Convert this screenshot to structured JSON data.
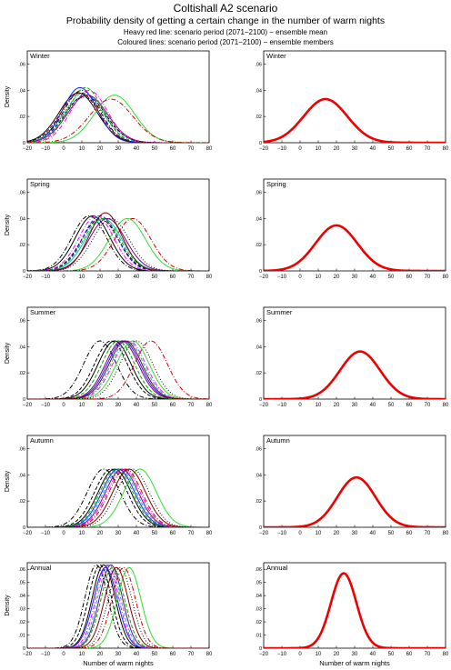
{
  "title": "Coltishall A2 scenario",
  "subtitle": "Probability density of getting a certain change in the number of warm nights",
  "legend_line_1": "Heavy red line: scenario period (2071−2100) − ensemble mean",
  "legend_line_2": "Coloured lines: scenario period (2071−2100) − ensemble members",
  "ylabel": "Density",
  "xlabel": "Number of warm nights",
  "chart_data": {
    "type": "line",
    "xlim": [
      -20,
      80
    ],
    "x_ticks": [
      -20,
      -10,
      0,
      10,
      20,
      30,
      40,
      50,
      60,
      70,
      80
    ],
    "y_ticks_by_panel": {
      "Winter": [
        0,
        0.02,
        0.04,
        0.06
      ],
      "Spring": [
        0,
        0.02,
        0.04,
        0.06
      ],
      "Summer": [
        0,
        0.02,
        0.04,
        0.06
      ],
      "Autumn": [
        0,
        0.02,
        0.04,
        0.06
      ],
      "Annual": [
        0,
        0.01,
        0.02,
        0.03,
        0.04,
        0.05,
        0.06
      ]
    },
    "panels": [
      {
        "label": "Winter",
        "ylim": [
          0,
          0.07
        ],
        "mean": {
          "mu": 14,
          "sd": 12
        },
        "members": [
          [
            10,
            10,
            "#000000",
            "dashdot"
          ],
          [
            12,
            11,
            "#000000",
            "dashed"
          ],
          [
            8,
            10.5,
            "#000000",
            "solid"
          ],
          [
            9,
            9.5,
            "#1a1aff",
            "solid"
          ],
          [
            11,
            10.5,
            "#00c0c0",
            "dashed"
          ],
          [
            13,
            11,
            "#800080",
            "solid"
          ],
          [
            14,
            10,
            "#ff00ff",
            "dashdot"
          ],
          [
            12,
            9.5,
            "#00aa00",
            "dashed"
          ],
          [
            28,
            11,
            "#33dd33",
            "solid"
          ],
          [
            26,
            12,
            "#cc0000",
            "dashdot"
          ],
          [
            9,
            10.5,
            "#800000",
            "dashed"
          ],
          [
            11,
            11.5,
            "#000000",
            "dotted"
          ]
        ]
      },
      {
        "label": "Spring",
        "ylim": [
          0,
          0.07
        ],
        "mean": {
          "mu": 20,
          "sd": 11.5
        },
        "members": [
          [
            16,
            9.5,
            "#000000",
            "solid"
          ],
          [
            14,
            9.5,
            "#000000",
            "dashdot"
          ],
          [
            20,
            10,
            "#000000",
            "dashed"
          ],
          [
            22,
            10,
            "#00c0c0",
            "solid"
          ],
          [
            20,
            9.5,
            "#1a1aff",
            "dashed"
          ],
          [
            24,
            10,
            "#800080",
            "solid"
          ],
          [
            18,
            9.5,
            "#ff00ff",
            "dashdot"
          ],
          [
            35,
            10,
            "#33dd33",
            "solid"
          ],
          [
            38,
            10,
            "#cc0000",
            "dashdot"
          ],
          [
            21,
            10,
            "#00aa00",
            "dashed"
          ],
          [
            23,
            9,
            "#800000",
            "solid"
          ],
          [
            26,
            10,
            "#000000",
            "dotted"
          ]
        ]
      },
      {
        "label": "Summer",
        "ylim": [
          0,
          0.07
        ],
        "mean": {
          "mu": 33,
          "sd": 11
        },
        "members": [
          [
            20,
            9,
            "#000000",
            "dashdot"
          ],
          [
            26,
            9,
            "#000000",
            "dashed"
          ],
          [
            28,
            9,
            "#000000",
            "solid"
          ],
          [
            33,
            9,
            "#1a1aff",
            "solid"
          ],
          [
            35,
            9,
            "#00c0c0",
            "dashed"
          ],
          [
            32,
            9,
            "#800080",
            "solid"
          ],
          [
            36,
            9,
            "#ff00ff",
            "dashdot"
          ],
          [
            38,
            9,
            "#33dd33",
            "solid"
          ],
          [
            48,
            9,
            "#cc0000",
            "dashdot"
          ],
          [
            30,
            9,
            "#00aa00",
            "dashed"
          ],
          [
            34,
            9,
            "#800000",
            "solid"
          ],
          [
            40,
            9,
            "#000000",
            "dotted"
          ]
        ]
      },
      {
        "label": "Autumn",
        "ylim": [
          0,
          0.07
        ],
        "mean": {
          "mu": 31,
          "sd": 10.5
        },
        "members": [
          [
            22,
            9,
            "#000000",
            "dashdot"
          ],
          [
            26,
            9,
            "#000000",
            "dashed"
          ],
          [
            28,
            9,
            "#000000",
            "solid"
          ],
          [
            30,
            9,
            "#1a1aff",
            "solid"
          ],
          [
            31,
            9,
            "#00c0c0",
            "dashed"
          ],
          [
            32,
            9,
            "#800080",
            "solid"
          ],
          [
            33,
            9,
            "#ff00ff",
            "dashdot"
          ],
          [
            42,
            9,
            "#33dd33",
            "solid"
          ],
          [
            34,
            9,
            "#cc0000",
            "dashdot"
          ],
          [
            29,
            9,
            "#00aa00",
            "dashed"
          ],
          [
            36,
            9,
            "#800000",
            "solid"
          ],
          [
            38,
            9,
            "#000000",
            "dotted"
          ]
        ]
      },
      {
        "label": "Annual",
        "ylim": [
          0,
          0.065
        ],
        "mean": {
          "mu": 24,
          "sd": 7
        },
        "members": [
          [
            18,
            6.3,
            "#000000",
            "dashdot"
          ],
          [
            20,
            6.3,
            "#000000",
            "dashed"
          ],
          [
            22,
            6.3,
            "#000000",
            "solid"
          ],
          [
            23,
            6.5,
            "#1a1aff",
            "solid"
          ],
          [
            25,
            6.3,
            "#00c0c0",
            "dashed"
          ],
          [
            26,
            6.3,
            "#800080",
            "solid"
          ],
          [
            24,
            6.3,
            "#ff00ff",
            "dashdot"
          ],
          [
            36,
            6.5,
            "#33dd33",
            "solid"
          ],
          [
            33,
            6.5,
            "#cc0000",
            "dashdot"
          ],
          [
            27,
            6.5,
            "#00aa00",
            "dashed"
          ],
          [
            29,
            6.5,
            "#800000",
            "solid"
          ],
          [
            31,
            6.5,
            "#000000",
            "dotted"
          ]
        ]
      }
    ],
    "mean_color": "#ee0000"
  }
}
